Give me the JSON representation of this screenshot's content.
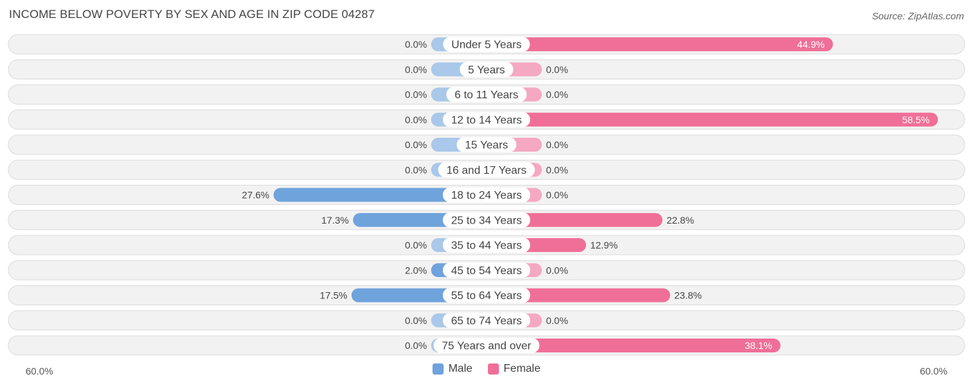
{
  "title": "INCOME BELOW POVERTY BY SEX AND AGE IN ZIP CODE 04287",
  "source": "Source: ZipAtlas.com",
  "colors": {
    "male": "#6fa3dc",
    "male_light": "#a9c8ea",
    "female": "#f06f98",
    "female_light": "#f5a8c2",
    "row_bg": "#f2f2f2",
    "row_border": "#dcdcdc"
  },
  "chart_data": {
    "type": "bar",
    "orientation": "horizontal-diverging",
    "categories": [
      "Under 5 Years",
      "5 Years",
      "6 to 11 Years",
      "12 to 14 Years",
      "15 Years",
      "16 and 17 Years",
      "18 to 24 Years",
      "25 to 34 Years",
      "35 to 44 Years",
      "45 to 54 Years",
      "55 to 64 Years",
      "65 to 74 Years",
      "75 Years and over"
    ],
    "series": [
      {
        "name": "Male",
        "values": [
          0.0,
          0.0,
          0.0,
          0.0,
          0.0,
          0.0,
          27.6,
          17.3,
          0.0,
          2.0,
          17.5,
          0.0,
          0.0
        ],
        "labels": [
          "0.0%",
          "0.0%",
          "0.0%",
          "0.0%",
          "0.0%",
          "0.0%",
          "27.6%",
          "17.3%",
          "0.0%",
          "2.0%",
          "17.5%",
          "0.0%",
          "0.0%"
        ]
      },
      {
        "name": "Female",
        "values": [
          44.9,
          0.0,
          0.0,
          58.5,
          0.0,
          0.0,
          0.0,
          22.8,
          12.9,
          0.0,
          23.8,
          0.0,
          38.1
        ],
        "labels": [
          "44.9%",
          "0.0%",
          "0.0%",
          "58.5%",
          "0.0%",
          "0.0%",
          "0.0%",
          "22.8%",
          "12.9%",
          "0.0%",
          "23.8%",
          "0.0%",
          "38.1%"
        ]
      }
    ],
    "axis_max": 60.0,
    "axis_left_label": "60.0%",
    "axis_right_label": "60.0%",
    "legend_position": "bottom-center"
  }
}
